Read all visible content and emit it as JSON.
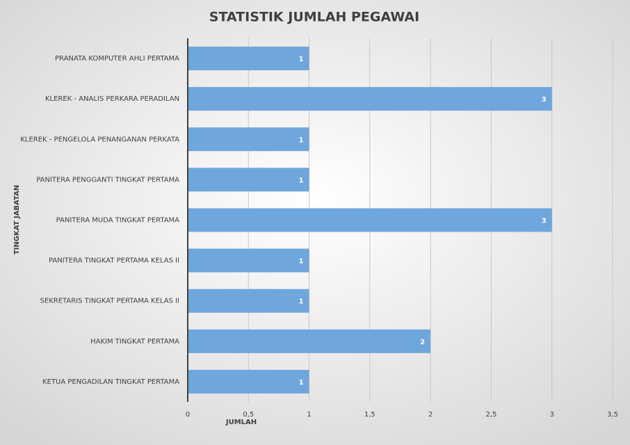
{
  "chart_data": {
    "type": "barh",
    "title": "STATISTIK JUMLAH PEGAWAI",
    "x_label": "JUMLAH",
    "y_label": "TINGKAT JABATAN",
    "categories": [
      "PRANATA KOMPUTER AHLI PERTAMA",
      "KLEREK - ANALIS PERKARA PERADILAN",
      "KLEREK - PENGELOLA PENANGANAN PERKATA",
      "PANITERA PENGGANTI TINGKAT PERTAMA",
      "PANITERA MUDA TINGKAT PERTAMA",
      "PANITERA TINGKAT PERTAMA KELAS II",
      "SEKRETARIS TINGKAT PERTAMA KELAS II",
      "HAKIM TINGKAT PERTAMA",
      "KETUA PENGADILAN TINGKAT PERTAMA"
    ],
    "values": [
      1,
      3,
      1,
      1,
      3,
      1,
      1,
      2,
      1
    ],
    "color": "#6fa6dc",
    "xlim": [
      0,
      3.5
    ],
    "xticks": [
      0,
      {
        "value": 0.5,
        "label": "0,5"
      },
      1,
      {
        "value": 1.5,
        "label": "1,5"
      },
      2,
      {
        "value": 2.5,
        "label": "2,5"
      },
      3,
      {
        "value": 3.5,
        "label": "3,5"
      }
    ],
    "grid": true
  }
}
